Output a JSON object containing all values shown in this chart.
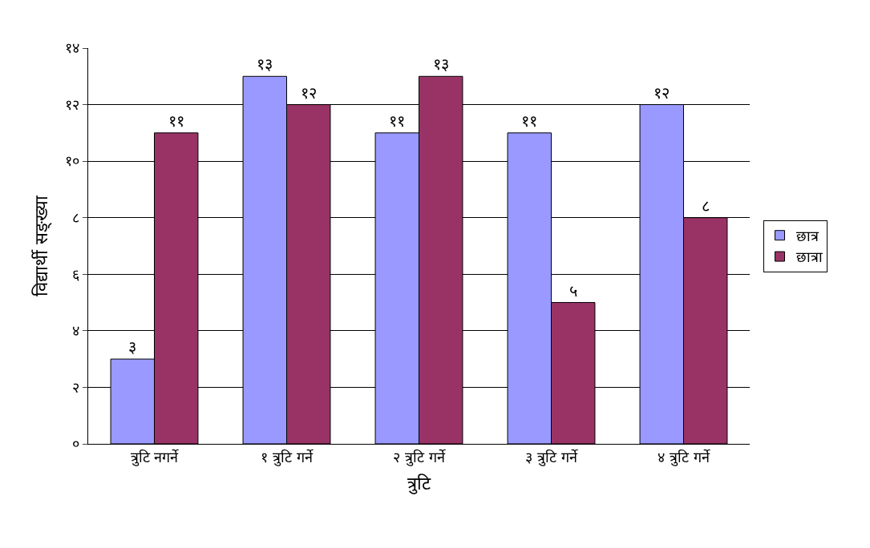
{
  "chart_data": {
    "type": "bar",
    "xlabel": "त्रुटि",
    "ylabel": "विद्यार्थी सङ्ख्या",
    "categories": [
      "त्रुटि नगर्ने",
      "१ त्रुटि गर्ने",
      "२ त्रुटि गर्ने",
      "३ त्रुटि गर्ने",
      "४ त्रुटि गर्ने"
    ],
    "series": [
      {
        "name": "छात्र",
        "color": "#9999ff",
        "values": [
          3,
          13,
          11,
          11,
          12
        ],
        "value_labels": [
          "३",
          "१३",
          "११",
          "११",
          "१२"
        ]
      },
      {
        "name": "छात्रा",
        "color": "#993366",
        "values": [
          11,
          12,
          13,
          5,
          8
        ],
        "value_labels": [
          "११",
          "१२",
          "१३",
          "५",
          "८"
        ]
      }
    ],
    "ylim": [
      0,
      14
    ],
    "yticks": [
      {
        "value": 0,
        "label": "०"
      },
      {
        "value": 2,
        "label": "२"
      },
      {
        "value": 4,
        "label": "४"
      },
      {
        "value": 6,
        "label": "६"
      },
      {
        "value": 8,
        "label": "८"
      },
      {
        "value": 10,
        "label": "१०"
      },
      {
        "value": 12,
        "label": "१२"
      },
      {
        "value": 14,
        "label": "१४"
      }
    ],
    "grid": "y",
    "legend": "right"
  }
}
